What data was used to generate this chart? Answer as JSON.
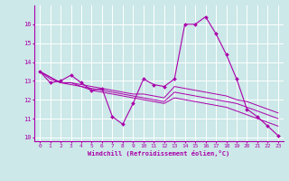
{
  "xlabel": "Windchill (Refroidissement éolien,°C)",
  "x_values": [
    0,
    1,
    2,
    3,
    4,
    5,
    6,
    7,
    8,
    9,
    10,
    11,
    12,
    13,
    14,
    15,
    16,
    17,
    18,
    19,
    20,
    21,
    22,
    23
  ],
  "main_line": [
    13.5,
    12.9,
    13.0,
    13.3,
    12.9,
    12.5,
    12.6,
    11.1,
    10.7,
    11.8,
    13.1,
    12.8,
    12.7,
    13.1,
    16.0,
    16.0,
    16.4,
    15.5,
    14.4,
    13.1,
    11.5,
    11.1,
    10.6,
    10.1
  ],
  "trend1": [
    13.5,
    13.2,
    12.9,
    12.9,
    12.8,
    12.7,
    12.6,
    12.5,
    12.4,
    12.3,
    12.3,
    12.2,
    12.1,
    12.7,
    12.6,
    12.5,
    12.4,
    12.3,
    12.2,
    12.0,
    11.9,
    11.7,
    11.5,
    11.3
  ],
  "trend2": [
    13.5,
    13.2,
    12.9,
    12.9,
    12.7,
    12.6,
    12.5,
    12.4,
    12.3,
    12.2,
    12.1,
    12.0,
    11.9,
    12.4,
    12.3,
    12.2,
    12.1,
    12.0,
    11.9,
    11.8,
    11.6,
    11.4,
    11.2,
    11.0
  ],
  "trend3": [
    13.5,
    13.1,
    12.9,
    12.8,
    12.7,
    12.5,
    12.4,
    12.3,
    12.2,
    12.1,
    12.0,
    11.9,
    11.8,
    12.1,
    12.0,
    11.9,
    11.8,
    11.7,
    11.6,
    11.4,
    11.2,
    11.0,
    10.8,
    10.6
  ],
  "line_color": "#aa00aa",
  "bg_color": "#cce8e8",
  "grid_color": "#b0d8d8",
  "ylim": [
    9.8,
    17.0
  ],
  "yticks": [
    10,
    11,
    12,
    13,
    14,
    15,
    16
  ],
  "xlim": [
    -0.5,
    23.5
  ]
}
